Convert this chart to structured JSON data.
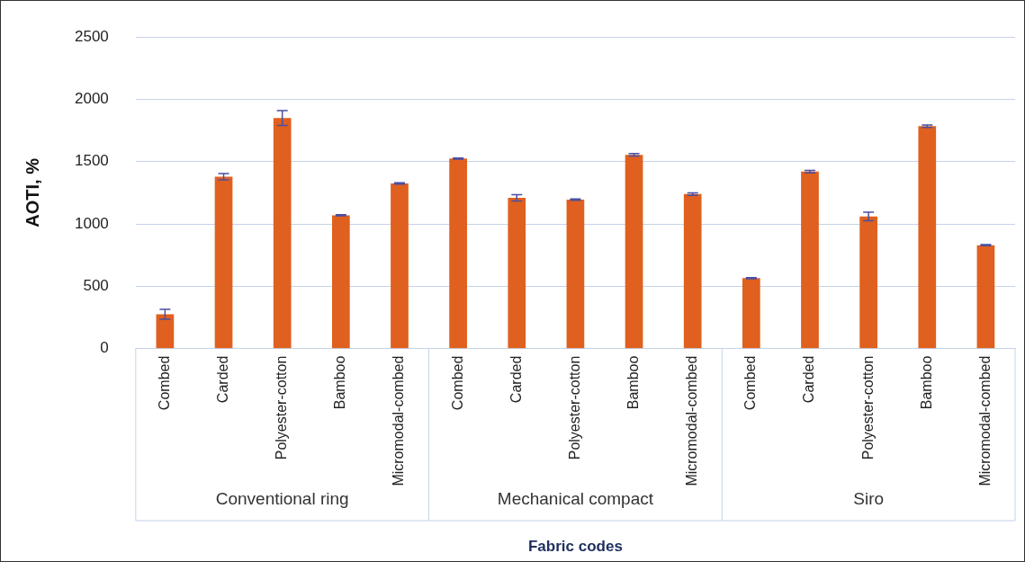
{
  "chart_data": {
    "type": "bar",
    "xlabel": "Fabric codes",
    "ylabel": "AOTI, %",
    "categories": [
      "Combed",
      "Carded",
      "Polyester-cotton",
      "Bamboo",
      "Micromodal-combed",
      "Combed",
      "Carded",
      "Polyester-cotton",
      "Bamboo",
      "Micromodal-combed",
      "Combed",
      "Carded",
      "Polyester-cotton",
      "Bamboo",
      "Micromodal-combed"
    ],
    "values": [
      275,
      1380,
      1850,
      1070,
      1325,
      1525,
      1210,
      1195,
      1555,
      1240,
      565,
      1420,
      1060,
      1785,
      830
    ],
    "errors": [
      40,
      25,
      60,
      5,
      5,
      5,
      25,
      5,
      10,
      10,
      5,
      10,
      35,
      10,
      5
    ],
    "color": "#e0601f",
    "annotations": [
      "Conventional ring",
      "Mechanical compact",
      "Siro"
    ],
    "ylim": [
      0,
      2500
    ],
    "yticks": [
      0,
      500,
      1000,
      1500,
      2000,
      2500
    ],
    "grid": "y",
    "legend": false
  }
}
